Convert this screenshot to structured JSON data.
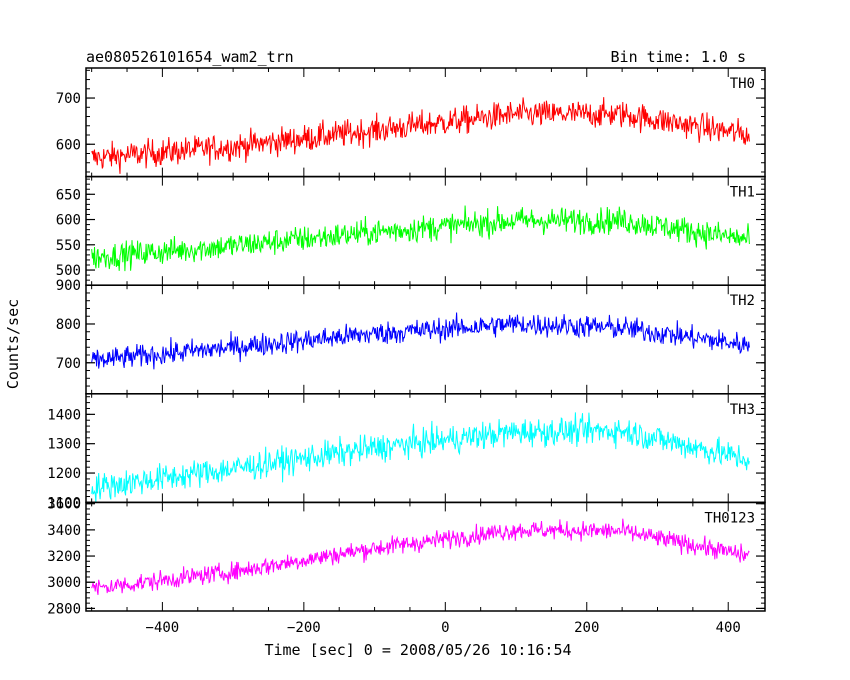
{
  "header": {
    "left": "ae080526101654_wam2_trn",
    "right": "Bin time: 1.0 s"
  },
  "chart_data": {
    "type": "line",
    "xlabel": "Time [sec] 0 = 2008/05/26 10:16:54",
    "ylabel": "Counts/sec",
    "xlim": [
      -508,
      452
    ],
    "xticks": [
      -400,
      -200,
      0,
      200,
      400
    ],
    "x_range": [
      -500,
      430
    ],
    "bin_time": 1.0,
    "panels": [
      {
        "label": "TH0",
        "color": "#ff0000",
        "ylim": [
          530,
          765
        ],
        "yticks": [
          600,
          700
        ],
        "trend_x": [
          -500,
          -300,
          -100,
          100,
          250,
          430
        ],
        "trend_y": [
          570,
          595,
          630,
          665,
          665,
          620
        ],
        "scatter": 25
      },
      {
        "label": "TH1",
        "color": "#00ff00",
        "ylim": [
          470,
          685
        ],
        "yticks": [
          500,
          550,
          600,
          650
        ],
        "trend_x": [
          -500,
          -300,
          -100,
          100,
          250,
          430
        ],
        "trend_y": [
          525,
          548,
          575,
          598,
          598,
          560
        ],
        "scatter": 22
      },
      {
        "label": "TH2",
        "color": "#0000ff",
        "ylim": [
          620,
          900
        ],
        "yticks": [
          700,
          800,
          900
        ],
        "trend_x": [
          -500,
          -300,
          -100,
          100,
          250,
          430
        ],
        "trend_y": [
          705,
          740,
          775,
          800,
          790,
          745
        ],
        "scatter": 25
      },
      {
        "label": "TH3",
        "color": "#00ffff",
        "ylim": [
          1100,
          1470
        ],
        "yticks": [
          1100,
          1200,
          1300,
          1400
        ],
        "trend_x": [
          -500,
          -300,
          -100,
          100,
          250,
          430
        ],
        "trend_y": [
          1150,
          1215,
          1285,
          1340,
          1345,
          1245
        ],
        "scatter": 40
      },
      {
        "label": "TH0123",
        "color": "#ff00ff",
        "ylim": [
          2780,
          3610
        ],
        "yticks": [
          2800,
          3000,
          3200,
          3400,
          3600
        ],
        "trend_x": [
          -500,
          -300,
          -100,
          100,
          250,
          430
        ],
        "trend_y": [
          2950,
          3080,
          3260,
          3400,
          3390,
          3200
        ],
        "scatter": 60
      }
    ]
  }
}
